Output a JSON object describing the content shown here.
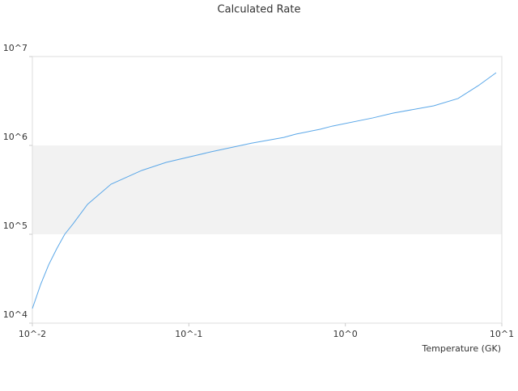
{
  "chart_data": {
    "type": "line",
    "title": "Calculated Rate",
    "x_label": "Temperature (GK)",
    "x_log": true,
    "y_log": true,
    "alternate_bands": true,
    "xlim": [
      0.01,
      10
    ],
    "ylim": [
      10000,
      10000000
    ],
    "xticks": [
      {
        "value": 0.01,
        "label": "10^-2"
      },
      {
        "value": 0.1,
        "label": "10^-1"
      },
      {
        "value": 1,
        "label": "10^0"
      },
      {
        "value": 10,
        "label": "10^1"
      }
    ],
    "yticks": [
      {
        "value": 10000,
        "label": "10^4"
      },
      {
        "value": 100000,
        "label": "10^5"
      },
      {
        "value": 1000000,
        "label": "10^6"
      },
      {
        "value": 10000000,
        "label": "10^7"
      }
    ],
    "x": [
      0.01,
      0.0113,
      0.0127,
      0.0143,
      0.0161,
      0.0182,
      0.0225,
      0.0318,
      0.05,
      0.0716,
      0.138,
      0.251,
      0.404,
      0.483,
      0.69,
      0.826,
      1.5,
      2.02,
      3.67,
      5.25,
      7.08,
      9.2
    ],
    "series": [
      {
        "color": "#5aa7e8",
        "values": [
          14600,
          27300,
          45200,
          68600,
          100000,
          131000,
          217000,
          366000,
          523000,
          644000,
          845000,
          1060000,
          1230000,
          1340000,
          1520000,
          1650000,
          2040000,
          2310000,
          2790000,
          3370000,
          4710000,
          6580000
        ]
      }
    ]
  }
}
